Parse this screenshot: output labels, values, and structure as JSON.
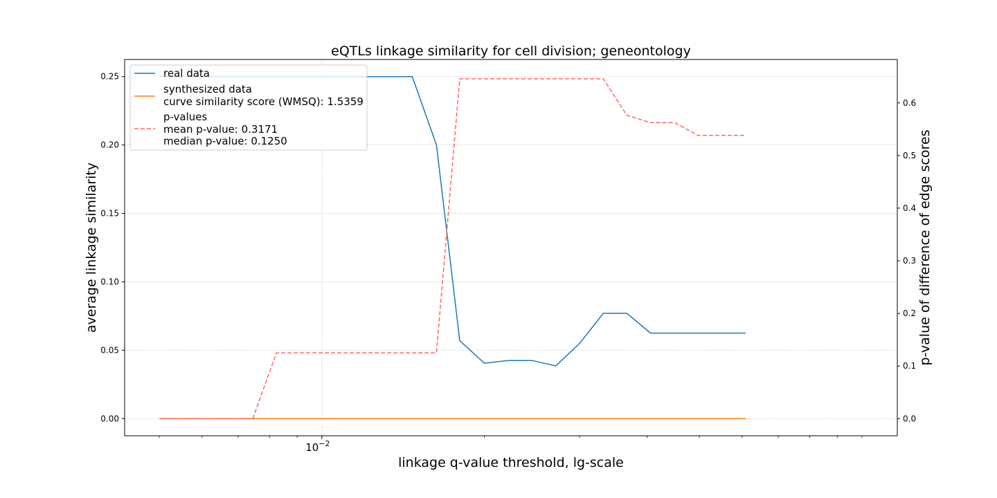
{
  "chart_data": {
    "type": "line",
    "title": "eQTLs linkage similarity for cell division; geneontology",
    "xlabel": "linkage q-value threshold, lg-scale",
    "ylabel": "average linkage similarity",
    "y2label": "p-value of difference of edge scores",
    "xscale": "log",
    "x_tick_major": {
      "value": 0.01,
      "base": "10",
      "exponent": "−2"
    },
    "ylim": [
      -0.0125,
      0.2625
    ],
    "y2lim": [
      -0.0325,
      0.6825
    ],
    "yticks": [
      "0.00",
      "0.05",
      "0.10",
      "0.15",
      "0.20",
      "0.25"
    ],
    "y2ticks": [
      "0.0",
      "0.1",
      "0.2",
      "0.3",
      "0.4",
      "0.5",
      "0.6"
    ],
    "grid": true,
    "legend_position": "top-left",
    "x": [
      0.005,
      0.00565,
      0.00638,
      0.00721,
      0.00815,
      0.00921,
      0.01041,
      0.01176,
      0.01329,
      0.01501,
      0.01696,
      0.01917,
      0.02166,
      0.02448,
      0.02766,
      0.03125,
      0.03531,
      0.0399,
      0.04509,
      0.05095,
      0.05757,
      0.06505,
      0.0735,
      0.08305,
      0.09384,
      0.1
    ],
    "series": [
      {
        "name": "real data",
        "axis": "left",
        "color": "#1f77b4",
        "style": "solid",
        "x": [
          0.005,
          0.0147,
          0.0163,
          0.018,
          0.02,
          0.0221,
          0.0245,
          0.0271,
          0.03,
          0.0332,
          0.0367,
          0.0406,
          0.045,
          0.0497,
          0.055,
          0.0609
        ],
        "values": [
          0.25,
          0.25,
          0.2,
          0.057,
          0.0405,
          0.0425,
          0.0425,
          0.0385,
          0.055,
          0.077,
          0.077,
          0.0625,
          0.0625,
          0.0625,
          0.0625,
          0.0625
        ]
      },
      {
        "name": "synthesized data",
        "axis": "left",
        "color": "#ff7f0e",
        "style": "solid",
        "x": [
          0.005,
          0.0609
        ],
        "values": [
          0.0,
          0.0
        ]
      },
      {
        "name": "p-values",
        "axis": "right",
        "color": "#ff6666",
        "style": "dashed",
        "x": [
          0.005,
          0.00745,
          0.00824,
          0.0163,
          0.018,
          0.0332,
          0.0367,
          0.0406,
          0.045,
          0.0497,
          0.055,
          0.0609
        ],
        "values": [
          0.0,
          0.0,
          0.125,
          0.125,
          0.6458,
          0.6458,
          0.5764,
          0.5625,
          0.5625,
          0.5382,
          0.5382,
          0.5382
        ]
      }
    ],
    "legend": [
      {
        "series": "real data",
        "lines": [
          "real data"
        ]
      },
      {
        "series": "synthesized data",
        "lines": [
          "synthesized data",
          "curve similarity score (WMSQ): 1.5359"
        ]
      },
      {
        "series": "p-values",
        "lines": [
          "p-values",
          "mean p-value: 0.3171",
          "median p-value: 0.1250"
        ]
      }
    ]
  }
}
